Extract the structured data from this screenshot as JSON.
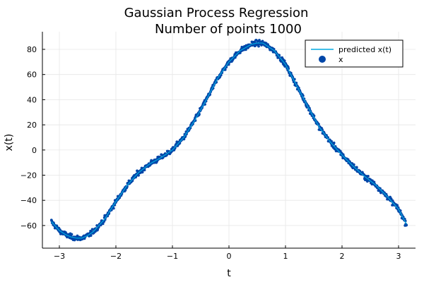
{
  "chart_data": {
    "type": "scatter",
    "title": "Gaussian Process Regression",
    "subtitle": "Number of points 1000",
    "xlabel": "t",
    "ylabel": "x(t)",
    "xlim": [
      -3.3,
      3.3
    ],
    "ylim": [
      -78,
      94
    ],
    "x_ticks": [
      -3,
      -2,
      -1,
      0,
      1,
      2,
      3
    ],
    "x_tick_labels": [
      "−3",
      "−2",
      "−1",
      "0",
      "1",
      "2",
      "3"
    ],
    "y_ticks": [
      -60,
      -40,
      -20,
      0,
      20,
      40,
      60,
      80
    ],
    "y_tick_labels": [
      "−60",
      "−40",
      "−20",
      "0",
      "20",
      "40",
      "60",
      "80"
    ],
    "grid": true,
    "legend_position": "top-right",
    "series": [
      {
        "name": "predicted x(t)",
        "kind": "line",
        "color": "#00a9e0",
        "x": [
          -3.14,
          -3.0,
          -2.9,
          -2.8,
          -2.7,
          -2.6,
          -2.5,
          -2.4,
          -2.2,
          -2.0,
          -1.8,
          -1.6,
          -1.4,
          -1.2,
          -1.0,
          -0.8,
          -0.6,
          -0.4,
          -0.2,
          0.0,
          0.2,
          0.4,
          0.5,
          0.6,
          0.8,
          1.0,
          1.2,
          1.4,
          1.6,
          1.8,
          2.0,
          2.2,
          2.4,
          2.6,
          2.8,
          3.0,
          3.14
        ],
        "y": [
          -57,
          -64,
          -67,
          -69,
          -70,
          -70,
          -68,
          -65,
          -55,
          -41,
          -28,
          -18,
          -11,
          -6,
          0,
          10,
          24,
          40,
          57,
          70,
          79,
          84,
          85,
          85,
          79,
          68,
          51,
          34,
          18,
          6,
          -4,
          -13,
          -21,
          -28,
          -37,
          -47,
          -59
        ]
      },
      {
        "name": "x",
        "kind": "scatter",
        "color": "#0046a8",
        "count": 1000
      }
    ]
  }
}
